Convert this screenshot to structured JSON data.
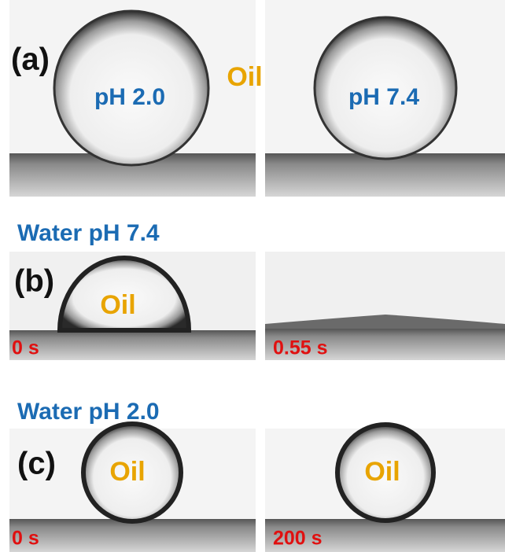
{
  "panels": [
    {
      "label": "(a)",
      "medium": "Oil",
      "images": [
        {
          "drop": "pH 2.0"
        },
        {
          "drop": "pH 7.4"
        }
      ]
    },
    {
      "heading": "Water pH 7.4",
      "label": "(b)",
      "images": [
        {
          "drop": "Oil",
          "time": "0 s"
        },
        {
          "time": "0.55 s"
        }
      ]
    },
    {
      "heading": "Water pH 2.0",
      "label": "(c)",
      "images": [
        {
          "drop": "Oil",
          "time": "0 s"
        },
        {
          "drop": "Oil",
          "time": "200 s"
        }
      ]
    }
  ]
}
